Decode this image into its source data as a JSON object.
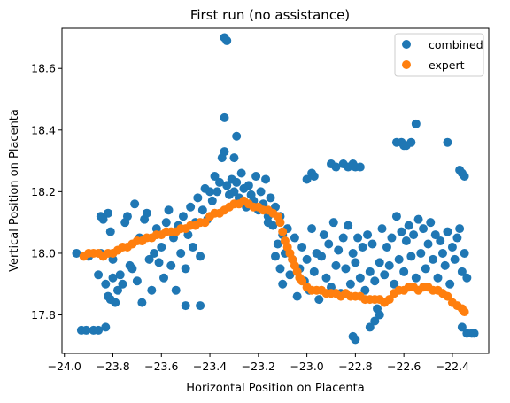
{
  "chart_data": {
    "type": "scatter",
    "title": "First run (no assistance)",
    "xlabel": "Horizontal Position on Placenta",
    "ylabel": "Vertical Position on Placenta",
    "xlim": [
      -24.01,
      -22.25
    ],
    "ylim": [
      17.675,
      18.73
    ],
    "xticks": [
      -24.0,
      -23.8,
      -23.6,
      -23.4,
      -23.2,
      -23.0,
      -22.8,
      -22.6,
      -22.4
    ],
    "xtick_labels": [
      "−24.0",
      "−23.8",
      "−23.6",
      "−23.4",
      "−23.2",
      "−23.0",
      "−22.8",
      "−22.6",
      "−22.4"
    ],
    "yticks": [
      17.8,
      18.0,
      18.2,
      18.4,
      18.6
    ],
    "ytick_labels": [
      "17.8",
      "18.0",
      "18.2",
      "18.4",
      "18.6"
    ],
    "grid": false,
    "legend_position": "top-right",
    "series": [
      {
        "name": "combined",
        "color": "#1f77b4",
        "points": [
          [
            -23.93,
            17.75
          ],
          [
            -23.91,
            17.75
          ],
          [
            -23.88,
            17.75
          ],
          [
            -23.86,
            17.75
          ],
          [
            -23.83,
            17.76
          ],
          [
            -23.95,
            18.0
          ],
          [
            -23.9,
            17.99
          ],
          [
            -23.85,
            18.0
          ],
          [
            -23.8,
            17.98
          ],
          [
            -23.86,
            17.93
          ],
          [
            -23.85,
            18.12
          ],
          [
            -23.84,
            18.11
          ],
          [
            -23.82,
            18.13
          ],
          [
            -23.81,
            18.07
          ],
          [
            -23.83,
            17.9
          ],
          [
            -23.82,
            17.86
          ],
          [
            -23.81,
            17.85
          ],
          [
            -23.8,
            17.92
          ],
          [
            -23.79,
            17.84
          ],
          [
            -23.78,
            17.88
          ],
          [
            -23.77,
            17.93
          ],
          [
            -23.76,
            17.9
          ],
          [
            -23.75,
            18.1
          ],
          [
            -23.74,
            18.12
          ],
          [
            -23.73,
            17.96
          ],
          [
            -23.72,
            17.95
          ],
          [
            -23.71,
            18.16
          ],
          [
            -23.7,
            17.91
          ],
          [
            -23.69,
            18.05
          ],
          [
            -23.68,
            17.84
          ],
          [
            -23.67,
            18.11
          ],
          [
            -23.66,
            18.13
          ],
          [
            -23.65,
            17.98
          ],
          [
            -23.64,
            17.88
          ],
          [
            -23.63,
            18.0
          ],
          [
            -23.62,
            18.08
          ],
          [
            -23.61,
            17.97
          ],
          [
            -23.6,
            18.02
          ],
          [
            -23.59,
            17.92
          ],
          [
            -23.58,
            18.1
          ],
          [
            -23.57,
            18.14
          ],
          [
            -23.56,
            17.96
          ],
          [
            -23.55,
            18.05
          ],
          [
            -23.54,
            17.88
          ],
          [
            -23.53,
            18.09
          ],
          [
            -23.52,
            18.0
          ],
          [
            -23.51,
            18.12
          ],
          [
            -23.5,
            17.95
          ],
          [
            -23.49,
            18.06
          ],
          [
            -23.48,
            18.15
          ],
          [
            -23.47,
            18.02
          ],
          [
            -23.46,
            18.1
          ],
          [
            -23.45,
            18.18
          ],
          [
            -23.44,
            17.99
          ],
          [
            -23.43,
            18.14
          ],
          [
            -23.42,
            18.21
          ],
          [
            -23.41,
            18.11
          ],
          [
            -23.4,
            18.2
          ],
          [
            -23.39,
            18.17
          ],
          [
            -23.38,
            18.25
          ],
          [
            -23.37,
            18.2
          ],
          [
            -23.36,
            18.23
          ],
          [
            -23.35,
            18.31
          ],
          [
            -23.34,
            18.33
          ],
          [
            -23.33,
            18.22
          ],
          [
            -23.32,
            18.19
          ],
          [
            -23.31,
            18.24
          ],
          [
            -23.3,
            18.2
          ],
          [
            -23.29,
            18.23
          ],
          [
            -23.28,
            18.18
          ],
          [
            -23.27,
            18.26
          ],
          [
            -23.26,
            18.21
          ],
          [
            -23.25,
            18.15
          ],
          [
            -23.24,
            18.22
          ],
          [
            -23.23,
            18.19
          ],
          [
            -23.22,
            18.17
          ],
          [
            -23.21,
            18.25
          ],
          [
            -23.2,
            18.14
          ],
          [
            -23.19,
            18.2
          ],
          [
            -23.18,
            18.16
          ],
          [
            -23.17,
            18.24
          ],
          [
            -23.16,
            18.12
          ],
          [
            -23.15,
            18.18
          ],
          [
            -23.14,
            18.09
          ],
          [
            -23.13,
            18.15
          ],
          [
            -23.12,
            18.03
          ],
          [
            -23.11,
            18.12
          ],
          [
            -23.1,
            18.06
          ],
          [
            -23.09,
            18.0
          ],
          [
            -23.08,
            18.08
          ],
          [
            -23.07,
            17.93
          ],
          [
            -23.06,
            17.98
          ],
          [
            -23.05,
            18.05
          ],
          [
            -23.04,
            17.86
          ],
          [
            -23.03,
            17.95
          ],
          [
            -23.02,
            18.02
          ],
          [
            -23.01,
            17.91
          ],
          [
            -23.0,
            17.98
          ],
          [
            -22.99,
            17.88
          ],
          [
            -22.98,
            18.08
          ],
          [
            -22.97,
            17.94
          ],
          [
            -22.96,
            18.0
          ],
          [
            -22.95,
            17.85
          ],
          [
            -22.94,
            17.99
          ],
          [
            -22.93,
            18.06
          ],
          [
            -22.92,
            17.92
          ],
          [
            -22.91,
            18.03
          ],
          [
            -22.9,
            17.89
          ],
          [
            -22.89,
            18.1
          ],
          [
            -22.88,
            17.96
          ],
          [
            -22.87,
            18.01
          ],
          [
            -22.86,
            17.87
          ],
          [
            -22.85,
            18.05
          ],
          [
            -22.84,
            17.95
          ],
          [
            -22.83,
            18.09
          ],
          [
            -22.82,
            17.9
          ],
          [
            -22.81,
            18.0
          ],
          [
            -22.8,
            17.97
          ],
          [
            -22.79,
            18.05
          ],
          [
            -22.78,
            17.92
          ],
          [
            -22.77,
            18.02
          ],
          [
            -22.76,
            17.88
          ],
          [
            -22.75,
            18.06
          ],
          [
            -22.74,
            17.94
          ],
          [
            -22.73,
            18.03
          ],
          [
            -22.72,
            17.91
          ],
          [
            -22.71,
            17.82
          ],
          [
            -22.7,
            17.97
          ],
          [
            -22.69,
            18.08
          ],
          [
            -22.68,
            17.93
          ],
          [
            -22.67,
            18.02
          ],
          [
            -22.66,
            17.96
          ],
          [
            -22.65,
            18.05
          ],
          [
            -22.64,
            17.9
          ],
          [
            -22.63,
            18.12
          ],
          [
            -22.62,
            17.98
          ],
          [
            -22.61,
            18.07
          ],
          [
            -22.6,
            17.94
          ],
          [
            -22.59,
            18.04
          ],
          [
            -22.58,
            18.09
          ],
          [
            -22.57,
            17.99
          ],
          [
            -22.56,
            18.06
          ],
          [
            -22.55,
            17.92
          ],
          [
            -22.54,
            18.11
          ],
          [
            -22.53,
            18.0
          ],
          [
            -22.52,
            18.08
          ],
          [
            -22.51,
            17.95
          ],
          [
            -22.5,
            18.03
          ],
          [
            -22.49,
            18.1
          ],
          [
            -22.48,
            17.98
          ],
          [
            -22.47,
            18.06
          ],
          [
            -22.46,
            17.92
          ],
          [
            -22.45,
            18.04
          ],
          [
            -22.44,
            18.0
          ],
          [
            -22.43,
            17.96
          ],
          [
            -22.42,
            18.07
          ],
          [
            -22.41,
            17.9
          ],
          [
            -22.4,
            18.02
          ],
          [
            -22.39,
            17.98
          ],
          [
            -22.38,
            18.05
          ],
          [
            -22.37,
            18.08
          ],
          [
            -22.36,
            17.94
          ],
          [
            -22.35,
            18.0
          ],
          [
            -22.34,
            17.92
          ],
          [
            -23.34,
            18.7
          ],
          [
            -23.33,
            18.69
          ],
          [
            -23.34,
            18.44
          ],
          [
            -22.55,
            18.42
          ],
          [
            -22.42,
            18.36
          ],
          [
            -22.63,
            18.36
          ],
          [
            -22.61,
            18.36
          ],
          [
            -22.6,
            18.35
          ],
          [
            -22.59,
            18.35
          ],
          [
            -22.57,
            18.36
          ],
          [
            -22.37,
            18.27
          ],
          [
            -22.36,
            18.26
          ],
          [
            -22.35,
            18.25
          ],
          [
            -22.9,
            18.29
          ],
          [
            -22.88,
            18.28
          ],
          [
            -22.85,
            18.29
          ],
          [
            -22.83,
            18.28
          ],
          [
            -22.81,
            18.29
          ],
          [
            -22.8,
            18.28
          ],
          [
            -22.78,
            18.28
          ],
          [
            -22.98,
            18.26
          ],
          [
            -22.97,
            18.25
          ],
          [
            -23.0,
            18.24
          ],
          [
            -22.8,
            17.72
          ],
          [
            -22.81,
            17.73
          ],
          [
            -22.74,
            17.76
          ],
          [
            -22.72,
            17.78
          ],
          [
            -22.7,
            17.8
          ],
          [
            -22.36,
            17.76
          ],
          [
            -22.34,
            17.74
          ],
          [
            -22.32,
            17.74
          ],
          [
            -22.31,
            17.74
          ],
          [
            -23.5,
            17.83
          ],
          [
            -23.44,
            17.83
          ],
          [
            -23.29,
            18.38
          ],
          [
            -23.3,
            18.31
          ],
          [
            -23.13,
            17.99
          ],
          [
            -23.11,
            17.95
          ],
          [
            -23.16,
            18.1
          ],
          [
            -23.1,
            17.9
          ]
        ]
      },
      {
        "name": "expert",
        "color": "#ff7f0e",
        "points": [
          [
            -23.92,
            17.99
          ],
          [
            -23.9,
            18.0
          ],
          [
            -23.88,
            18.0
          ],
          [
            -23.86,
            18.0
          ],
          [
            -23.84,
            17.99
          ],
          [
            -23.82,
            18.0
          ],
          [
            -23.8,
            18.0
          ],
          [
            -23.78,
            18.01
          ],
          [
            -23.76,
            18.02
          ],
          [
            -23.74,
            18.02
          ],
          [
            -23.72,
            18.03
          ],
          [
            -23.7,
            18.04
          ],
          [
            -23.68,
            18.04
          ],
          [
            -23.66,
            18.05
          ],
          [
            -23.64,
            18.05
          ],
          [
            -23.62,
            18.06
          ],
          [
            -23.6,
            18.06
          ],
          [
            -23.58,
            18.07
          ],
          [
            -23.56,
            18.07
          ],
          [
            -23.54,
            18.07
          ],
          [
            -23.52,
            18.08
          ],
          [
            -23.5,
            18.08
          ],
          [
            -23.48,
            18.09
          ],
          [
            -23.46,
            18.09
          ],
          [
            -23.44,
            18.1
          ],
          [
            -23.42,
            18.1
          ],
          [
            -23.4,
            18.12
          ],
          [
            -23.38,
            18.13
          ],
          [
            -23.36,
            18.13
          ],
          [
            -23.34,
            18.14
          ],
          [
            -23.32,
            18.15
          ],
          [
            -23.3,
            18.16
          ],
          [
            -23.28,
            18.16
          ],
          [
            -23.26,
            18.17
          ],
          [
            -23.24,
            18.16
          ],
          [
            -23.22,
            18.15
          ],
          [
            -23.2,
            18.15
          ],
          [
            -23.18,
            18.14
          ],
          [
            -23.16,
            18.14
          ],
          [
            -23.14,
            18.13
          ],
          [
            -23.12,
            18.12
          ],
          [
            -23.11,
            18.1
          ],
          [
            -23.1,
            18.07
          ],
          [
            -23.09,
            18.04
          ],
          [
            -23.08,
            18.02
          ],
          [
            -23.07,
            18.0
          ],
          [
            -23.06,
            17.98
          ],
          [
            -23.05,
            17.96
          ],
          [
            -23.04,
            17.94
          ],
          [
            -23.03,
            17.92
          ],
          [
            -23.02,
            17.91
          ],
          [
            -23.0,
            17.89
          ],
          [
            -22.98,
            17.88
          ],
          [
            -22.96,
            17.88
          ],
          [
            -22.94,
            17.88
          ],
          [
            -22.92,
            17.87
          ],
          [
            -22.9,
            17.87
          ],
          [
            -22.88,
            17.87
          ],
          [
            -22.86,
            17.86
          ],
          [
            -22.84,
            17.87
          ],
          [
            -22.82,
            17.86
          ],
          [
            -22.8,
            17.86
          ],
          [
            -22.78,
            17.86
          ],
          [
            -22.76,
            17.85
          ],
          [
            -22.74,
            17.85
          ],
          [
            -22.72,
            17.85
          ],
          [
            -22.7,
            17.85
          ],
          [
            -22.68,
            17.84
          ],
          [
            -22.66,
            17.85
          ],
          [
            -22.64,
            17.87
          ],
          [
            -22.62,
            17.88
          ],
          [
            -22.6,
            17.88
          ],
          [
            -22.58,
            17.89
          ],
          [
            -22.56,
            17.89
          ],
          [
            -22.54,
            17.88
          ],
          [
            -22.52,
            17.89
          ],
          [
            -22.5,
            17.89
          ],
          [
            -22.48,
            17.88
          ],
          [
            -22.46,
            17.88
          ],
          [
            -22.44,
            17.87
          ],
          [
            -22.42,
            17.86
          ],
          [
            -22.4,
            17.84
          ],
          [
            -22.38,
            17.83
          ],
          [
            -22.36,
            17.82
          ],
          [
            -22.35,
            17.81
          ]
        ]
      }
    ]
  }
}
